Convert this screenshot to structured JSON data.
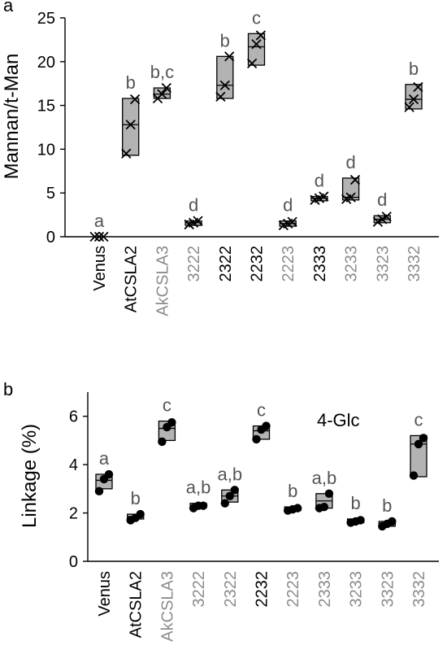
{
  "chart_data": [
    {
      "type": "box",
      "panel_label": "a",
      "ylabel": "Mannan/t-Man",
      "ylim": [
        0,
        25
      ],
      "yticks": [
        0,
        5,
        10,
        15,
        20,
        25
      ],
      "marker": "x",
      "colors": {
        "black_label": "#000000",
        "gray_label": "#8c8c8c",
        "box_fill": "#b3b3b3"
      },
      "categories": [
        {
          "label": "Venus",
          "label_color": "black",
          "letter": "a",
          "points": [
            0,
            0,
            0
          ],
          "box": [
            0,
            0,
            0
          ]
        },
        {
          "label": "AtCSLA2",
          "label_color": "black",
          "letter": "b",
          "points": [
            9.5,
            12.8,
            15.7
          ],
          "box": [
            9.3,
            12.8,
            15.8
          ]
        },
        {
          "label": "AkCSLA3",
          "label_color": "gray",
          "letter": "b,c",
          "points": [
            15.8,
            16.3,
            17.0
          ],
          "box": [
            15.8,
            16.3,
            17.0
          ]
        },
        {
          "label": "3222",
          "label_color": "gray",
          "letter": "d",
          "points": [
            1.4,
            1.6,
            1.8
          ],
          "box": [
            1.3,
            1.6,
            1.8
          ]
        },
        {
          "label": "2322",
          "label_color": "black",
          "letter": "b",
          "points": [
            16.0,
            17.3,
            20.6
          ],
          "box": [
            15.8,
            17.3,
            20.6
          ]
        },
        {
          "label": "2232",
          "label_color": "black",
          "letter": "c",
          "points": [
            19.8,
            22.0,
            23.0
          ],
          "box": [
            19.6,
            21.7,
            23.2
          ]
        },
        {
          "label": "2223",
          "label_color": "gray",
          "letter": "d",
          "points": [
            1.3,
            1.5,
            1.7
          ],
          "box": [
            1.2,
            1.5,
            1.8
          ]
        },
        {
          "label": "2333",
          "label_color": "black",
          "letter": "d",
          "points": [
            4.2,
            4.4,
            4.6
          ],
          "box": [
            4.1,
            4.4,
            4.6
          ]
        },
        {
          "label": "3233",
          "label_color": "gray",
          "letter": "d",
          "points": [
            4.3,
            4.5,
            6.5
          ],
          "box": [
            4.2,
            4.5,
            6.7
          ]
        },
        {
          "label": "3323",
          "label_color": "gray",
          "letter": "d",
          "points": [
            1.7,
            2.0,
            2.3
          ],
          "box": [
            1.6,
            2.0,
            2.4
          ]
        },
        {
          "label": "3332",
          "label_color": "gray",
          "letter": "b",
          "points": [
            14.8,
            15.7,
            17.1
          ],
          "box": [
            14.6,
            15.7,
            17.4
          ]
        }
      ]
    },
    {
      "type": "box",
      "panel_label": "b",
      "ylabel": "Linkage (%)",
      "annotation": "4-Glc",
      "ylim": [
        0,
        7
      ],
      "yticks": [
        0,
        2,
        4,
        6
      ],
      "marker": "dot",
      "categories": [
        {
          "label": "Venus",
          "label_color": "black",
          "letter": "a",
          "points": [
            2.9,
            3.4,
            3.6
          ],
          "box": [
            3.0,
            3.35,
            3.6
          ]
        },
        {
          "label": "AtCSLA2",
          "label_color": "black",
          "letter": "b",
          "points": [
            1.7,
            1.8,
            1.95
          ],
          "box": [
            1.75,
            1.85,
            1.95
          ]
        },
        {
          "label": "AkCSLA3",
          "label_color": "gray",
          "letter": "c",
          "points": [
            4.95,
            5.55,
            5.75
          ],
          "box": [
            5.0,
            5.5,
            5.8
          ]
        },
        {
          "label": "3222",
          "label_color": "gray",
          "letter": "a,b",
          "points": [
            2.2,
            2.3,
            2.3
          ],
          "box": [
            2.25,
            2.3,
            2.4
          ]
        },
        {
          "label": "2322",
          "label_color": "gray",
          "letter": "a,b",
          "points": [
            2.4,
            2.7,
            2.95
          ],
          "box": [
            2.45,
            2.7,
            2.95
          ]
        },
        {
          "label": "2232",
          "label_color": "black",
          "letter": "c",
          "points": [
            5.05,
            5.45,
            5.6
          ],
          "box": [
            5.05,
            5.4,
            5.6
          ]
        },
        {
          "label": "2223",
          "label_color": "gray",
          "letter": "b",
          "points": [
            2.1,
            2.15,
            2.2
          ],
          "box": [
            2.1,
            2.15,
            2.25
          ]
        },
        {
          "label": "2333",
          "label_color": "gray",
          "letter": "a,b",
          "points": [
            2.2,
            2.25,
            2.8
          ],
          "box": [
            2.2,
            2.5,
            2.8
          ]
        },
        {
          "label": "3233",
          "label_color": "gray",
          "letter": "b",
          "points": [
            1.6,
            1.65,
            1.7
          ],
          "box": [
            1.6,
            1.65,
            1.75
          ]
        },
        {
          "label": "3323",
          "label_color": "gray",
          "letter": "b",
          "points": [
            1.45,
            1.55,
            1.65
          ],
          "box": [
            1.45,
            1.55,
            1.65
          ]
        },
        {
          "label": "3332",
          "label_color": "gray",
          "letter": "c",
          "points": [
            3.55,
            4.85,
            5.1
          ],
          "box": [
            3.5,
            4.85,
            5.2
          ]
        }
      ]
    }
  ]
}
